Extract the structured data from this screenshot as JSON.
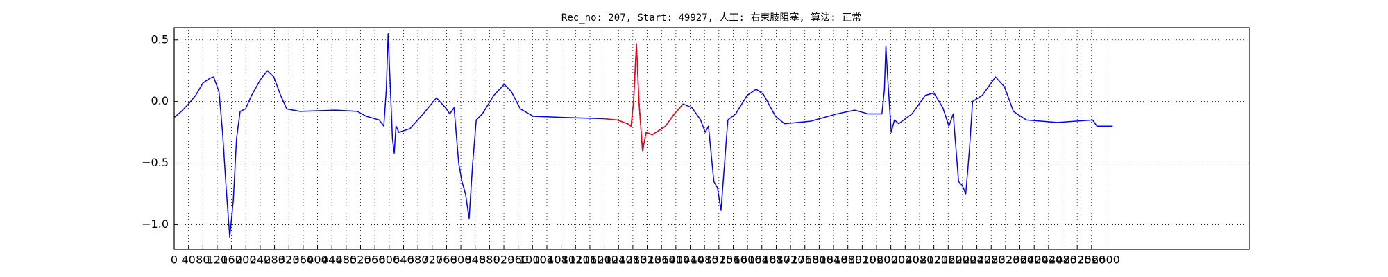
{
  "chart_data": {
    "type": "line",
    "title": "Rec_no: 207, Start: 49927, 人工: 右束肢阻塞, 算法: 正常",
    "xlim": [
      0,
      3000
    ],
    "ylim": [
      -1.2,
      0.6
    ],
    "xticks": [
      0,
      40,
      80,
      120,
      160,
      200,
      240,
      280,
      320,
      360,
      400,
      440,
      480,
      520,
      560,
      600,
      640,
      680,
      720,
      760,
      800,
      840,
      880,
      920,
      960,
      1000,
      1040,
      1080,
      1120,
      1160,
      1200,
      1240,
      1280,
      1320,
      1360,
      1400,
      1440,
      1480,
      1520,
      1560,
      1600,
      1640,
      1680,
      1720,
      1760,
      1800,
      1840,
      1880,
      1920,
      1960,
      2000,
      2040,
      2080,
      2120,
      2160,
      2200,
      2240,
      2280,
      2320,
      2360,
      2400,
      2440,
      2480,
      2520,
      2560,
      2600
    ],
    "yticks": [
      0.5,
      {
        "value": 0,
        "label": "0.0"
      },
      {
        "value": -0.5,
        "label": "−0.5"
      },
      {
        "value": -1.0,
        "label": "−1.0"
      }
    ],
    "grid": true,
    "series": [
      {
        "color": "#0000ff",
        "x": [
          0,
          20,
          40,
          60,
          80,
          100,
          110,
          125,
          135,
          145,
          155,
          165,
          174,
          184,
          199,
          216,
          241,
          260,
          278,
          297,
          314,
          351,
          450,
          511,
          536,
          572,
          585,
          592,
          597,
          602,
          609,
          614,
          619,
          627,
          658,
          695,
          732,
          757,
          769,
          781,
          794,
          803,
          813,
          823,
          833,
          843,
          860,
          892,
          921,
          941,
          966,
          1002,
          1088,
          1199,
          1236,
          1265,
          1275,
          1282,
          1290,
          1297,
          1307,
          1317,
          1334,
          1371,
          1396,
          1420,
          1445,
          1469,
          1482,
          1491,
          1506,
          1516,
          1526,
          1536,
          1545,
          1567,
          1599,
          1624,
          1644,
          1678,
          1703,
          1776,
          1850,
          1899,
          1936,
          1975,
          1982,
          1986,
          1991,
          2001,
          2010,
          2022,
          2059,
          2096,
          2120,
          2145,
          2162,
          2174,
          2189,
          2199,
          2209,
          2219,
          2228,
          2255,
          2292,
          2317,
          2342,
          2378,
          2464,
          2563,
          2575,
          2619
        ],
        "values": [
          -0.13,
          -0.08,
          -0.02,
          0.05,
          0.15,
          0.19,
          0.2,
          0.08,
          -0.25,
          -0.7,
          -1.1,
          -0.8,
          -0.3,
          -0.08,
          -0.06,
          0.05,
          0.18,
          0.25,
          0.2,
          0.05,
          -0.06,
          -0.08,
          -0.07,
          -0.08,
          -0.12,
          -0.15,
          -0.2,
          0.1,
          0.55,
          0.2,
          -0.3,
          -0.42,
          -0.2,
          -0.25,
          -0.22,
          -0.1,
          0.03,
          -0.05,
          -0.1,
          -0.05,
          -0.5,
          -0.65,
          -0.75,
          -0.95,
          -0.5,
          -0.15,
          -0.1,
          0.05,
          0.14,
          0.08,
          -0.06,
          -0.12,
          -0.13,
          -0.14,
          -0.15,
          -0.18,
          -0.2,
          0.0,
          0.47,
          0.0,
          -0.4,
          -0.25,
          -0.27,
          -0.2,
          -0.1,
          -0.02,
          -0.05,
          -0.15,
          -0.25,
          -0.2,
          -0.65,
          -0.7,
          -0.88,
          -0.5,
          -0.15,
          -0.1,
          0.05,
          0.1,
          0.06,
          -0.12,
          -0.18,
          -0.16,
          -0.1,
          -0.07,
          -0.1,
          -0.1,
          0.1,
          0.45,
          0.2,
          -0.25,
          -0.15,
          -0.18,
          -0.1,
          0.05,
          0.07,
          -0.05,
          -0.2,
          -0.1,
          -0.65,
          -0.68,
          -0.75,
          -0.4,
          0.0,
          0.05,
          0.2,
          0.12,
          -0.08,
          -0.15,
          -0.17,
          -0.15,
          -0.2,
          -0.2
        ]
      },
      {
        "color": "#ff0000",
        "x": [
          1199,
          1236,
          1265,
          1275,
          1282,
          1290,
          1297,
          1307,
          1317,
          1334,
          1371,
          1396,
          1420
        ],
        "values": [
          -0.14,
          -0.15,
          -0.18,
          -0.2,
          0.0,
          0.47,
          0.0,
          -0.4,
          -0.25,
          -0.27,
          -0.2,
          -0.1,
          -0.02
        ]
      }
    ]
  }
}
